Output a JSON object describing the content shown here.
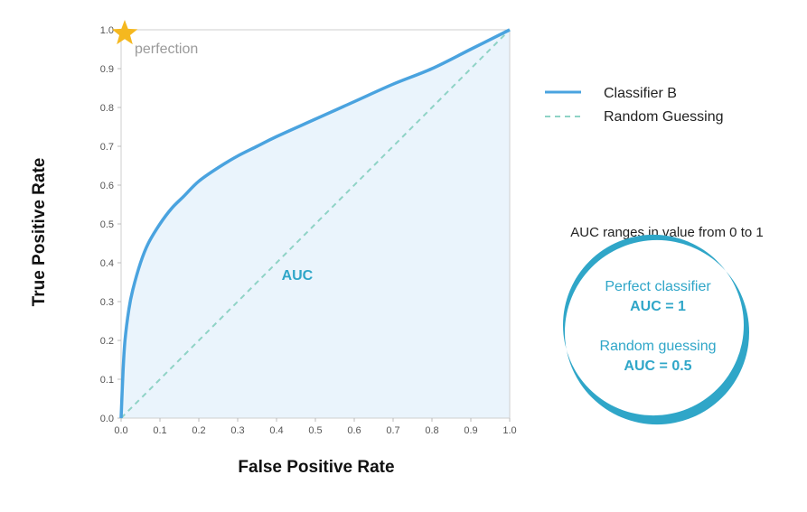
{
  "chart_data": {
    "type": "line",
    "xlabel": "False Positive Rate",
    "ylabel": "True Positive Rate",
    "xlim": [
      0.0,
      1.0
    ],
    "ylim": [
      0.0,
      1.0
    ],
    "xticks": [
      "0.0",
      "0.1",
      "0.2",
      "0.3",
      "0.4",
      "0.5",
      "0.6",
      "0.7",
      "0.8",
      "0.9",
      "1.0"
    ],
    "yticks": [
      "0.0",
      "0.1",
      "0.2",
      "0.3",
      "0.4",
      "0.5",
      "0.6",
      "0.7",
      "0.8",
      "0.9",
      "1.0"
    ],
    "grid": false,
    "legend_position": "right",
    "series": [
      {
        "name": "Classifier B",
        "style": "solid",
        "color": "#4aa3df",
        "x": [
          0.0,
          0.005,
          0.01,
          0.02,
          0.03,
          0.05,
          0.07,
          0.1,
          0.13,
          0.16,
          0.2,
          0.25,
          0.3,
          0.35,
          0.4,
          0.5,
          0.6,
          0.7,
          0.8,
          0.9,
          1.0
        ],
        "y": [
          0.0,
          0.12,
          0.2,
          0.28,
          0.33,
          0.4,
          0.45,
          0.5,
          0.54,
          0.57,
          0.61,
          0.645,
          0.675,
          0.7,
          0.725,
          0.77,
          0.815,
          0.86,
          0.9,
          0.95,
          1.0
        ]
      },
      {
        "name": "Random Guessing",
        "style": "dashed",
        "color": "#8fd3c6",
        "x": [
          0.0,
          1.0
        ],
        "y": [
          0.0,
          1.0
        ]
      }
    ],
    "fill_color": "#eaf4fc",
    "annotations": {
      "star_label": "perfection",
      "star_point": [
        0.0,
        1.0
      ],
      "auc_label": "AUC",
      "auc_point": [
        0.63,
        0.36
      ]
    }
  },
  "side_note": {
    "title": "AUC ranges in value from 0 to 1",
    "line1": "Perfect classifier",
    "line2": "AUC = 1",
    "line3": "Random guessing",
    "line4": "AUC = 0.5",
    "accent_color": "#2fa6c8"
  }
}
